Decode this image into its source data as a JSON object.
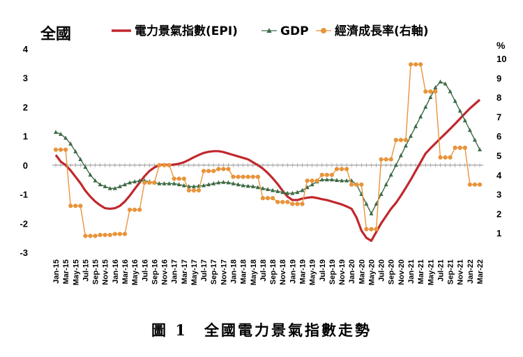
{
  "chart_data": {
    "type": "line",
    "title": "全國",
    "caption": "圖 1　全國電力景氣指數走勢",
    "right_unit": "%",
    "x": [
      "Jan-15",
      "Feb-15",
      "Mar-15",
      "Apr-15",
      "May-15",
      "Jun-15",
      "Jul-15",
      "Aug-15",
      "Sep-15",
      "Oct-15",
      "Nov-15",
      "Dec-15",
      "Jan-16",
      "Feb-16",
      "Mar-16",
      "Apr-16",
      "May-16",
      "Jun-16",
      "Jul-16",
      "Aug-16",
      "Sep-16",
      "Oct-16",
      "Nov-16",
      "Dec-16",
      "Jan-17",
      "Feb-17",
      "Mar-17",
      "Apr-17",
      "May-17",
      "Jun-17",
      "Jul-17",
      "Aug-17",
      "Sep-17",
      "Oct-17",
      "Nov-17",
      "Dec-17",
      "Jan-18",
      "Feb-18",
      "Mar-18",
      "Apr-18",
      "May-18",
      "Jun-18",
      "Jul-18",
      "Aug-18",
      "Sep-18",
      "Oct-18",
      "Nov-18",
      "Dec-18",
      "Jan-19",
      "Feb-19",
      "Mar-19",
      "Apr-19",
      "May-19",
      "Jun-19",
      "Jul-19",
      "Aug-19",
      "Sep-19",
      "Oct-19",
      "Nov-19",
      "Dec-19",
      "Jan-20",
      "Feb-20",
      "Mar-20",
      "Apr-20",
      "May-20",
      "Jun-20",
      "Jul-20",
      "Aug-20",
      "Sep-20",
      "Oct-20",
      "Nov-20",
      "Dec-20",
      "Jan-21",
      "Feb-21",
      "Mar-21",
      "Apr-21",
      "May-21",
      "Jun-21",
      "Jul-21",
      "Aug-21",
      "Sep-21",
      "Oct-21",
      "Nov-21",
      "Dec-21",
      "Jan-22",
      "Feb-22",
      "Mar-22"
    ],
    "x_tick_labels": [
      "Jan-15",
      "Mar-15",
      "May-15",
      "Jul-15",
      "Sep-15",
      "Nov-15",
      "Jan-16",
      "Mar-16",
      "May-16",
      "Jul-16",
      "Sep-16",
      "Nov-16",
      "Jan-17",
      "Mar-17",
      "May-17",
      "Jul-17",
      "Sep-17",
      "Nov-17",
      "Jan-18",
      "Mar-18",
      "May-18",
      "Jul-18",
      "Sep-18",
      "Nov-18",
      "Jan-19",
      "Mar-19",
      "May-19",
      "Jul-19",
      "Sep-19",
      "Nov-19",
      "Jan-20",
      "Mar-20",
      "May-20",
      "Jul-20",
      "Sep-20",
      "Nov-20",
      "Jan-21",
      "Mar-21",
      "May-21",
      "Jul-21",
      "Sep-21",
      "Nov-21",
      "Jan-22",
      "Mar-22"
    ],
    "y_left": {
      "range": [
        -3,
        4
      ],
      "ticks": [
        4,
        3,
        2,
        1,
        0,
        -1,
        -2,
        -3
      ]
    },
    "y_right": {
      "range": [
        0,
        10
      ],
      "ticks": [
        10,
        9,
        8,
        7,
        6,
        5,
        4,
        3,
        2,
        1
      ]
    },
    "grid": false,
    "legend_position": "top",
    "series": [
      {
        "name": "電力景氣指數(EPI)",
        "axis": "left",
        "color": "#C0282D",
        "marker": "none",
        "values": [
          0.35,
          0.12,
          0.0,
          -0.18,
          -0.4,
          -0.62,
          -0.88,
          -1.08,
          -1.25,
          -1.38,
          -1.48,
          -1.5,
          -1.48,
          -1.4,
          -1.25,
          -1.05,
          -0.82,
          -0.6,
          -0.38,
          -0.2,
          -0.08,
          0.0,
          0.02,
          0.0,
          0.02,
          0.05,
          0.1,
          0.18,
          0.27,
          0.35,
          0.42,
          0.46,
          0.48,
          0.48,
          0.45,
          0.4,
          0.35,
          0.3,
          0.25,
          0.2,
          0.1,
          0.0,
          -0.12,
          -0.27,
          -0.45,
          -0.65,
          -0.88,
          -1.08,
          -1.2,
          -1.2,
          -1.15,
          -1.12,
          -1.1,
          -1.13,
          -1.17,
          -1.2,
          -1.25,
          -1.3,
          -1.35,
          -1.42,
          -1.5,
          -1.8,
          -2.25,
          -2.5,
          -2.6,
          -2.3,
          -2.0,
          -1.75,
          -1.5,
          -1.3,
          -1.05,
          -0.78,
          -0.5,
          -0.2,
          0.1,
          0.4,
          0.58,
          0.75,
          0.92,
          1.08,
          1.25,
          1.42,
          1.6,
          1.78,
          1.95,
          2.1,
          2.25
        ]
      },
      {
        "name": "GDP",
        "axis": "right",
        "color": "#3E6B45",
        "marker": "triangle",
        "values": [
          6.2,
          6.1,
          5.9,
          5.6,
          5.2,
          4.8,
          4.4,
          4.0,
          3.7,
          3.5,
          3.4,
          3.3,
          3.3,
          3.4,
          3.5,
          3.6,
          3.65,
          3.7,
          3.7,
          3.65,
          3.6,
          3.55,
          3.55,
          3.55,
          3.55,
          3.5,
          3.45,
          3.4,
          3.4,
          3.42,
          3.45,
          3.5,
          3.55,
          3.6,
          3.62,
          3.6,
          3.55,
          3.5,
          3.45,
          3.42,
          3.4,
          3.35,
          3.3,
          3.25,
          3.2,
          3.15,
          3.1,
          3.05,
          3.05,
          3.1,
          3.2,
          3.35,
          3.5,
          3.65,
          3.75,
          3.75,
          3.75,
          3.72,
          3.7,
          3.7,
          3.7,
          3.5,
          3.0,
          2.5,
          2.0,
          2.5,
          3.0,
          3.5,
          4.0,
          4.5,
          5.0,
          5.5,
          6.0,
          6.5,
          7.0,
          7.5,
          8.0,
          8.5,
          8.8,
          8.7,
          8.3,
          7.8,
          7.3,
          6.8,
          6.3,
          5.8,
          5.3
        ]
      },
      {
        "name": "經濟成長率(右軸)",
        "axis": "right",
        "color": "#E8943A",
        "marker": "circle",
        "values": [
          5.3,
          5.3,
          5.3,
          2.4,
          2.4,
          2.4,
          0.85,
          0.85,
          0.85,
          0.9,
          0.9,
          0.9,
          0.95,
          0.95,
          0.95,
          2.2,
          2.2,
          2.2,
          3.6,
          3.6,
          3.6,
          4.5,
          4.5,
          4.5,
          3.8,
          3.8,
          3.8,
          3.2,
          3.2,
          3.2,
          4.2,
          4.2,
          4.2,
          4.3,
          4.3,
          4.3,
          3.9,
          3.9,
          3.9,
          3.9,
          3.9,
          3.9,
          2.8,
          2.8,
          2.8,
          2.6,
          2.6,
          2.6,
          2.5,
          2.5,
          2.5,
          3.7,
          3.7,
          3.7,
          4.0,
          4.0,
          4.0,
          4.3,
          4.3,
          4.3,
          3.5,
          3.5,
          3.5,
          1.2,
          1.2,
          1.2,
          4.8,
          4.8,
          4.8,
          5.8,
          5.8,
          5.8,
          9.7,
          9.7,
          9.7,
          8.3,
          8.3,
          8.3,
          4.9,
          4.9,
          4.9,
          5.4,
          5.4,
          5.4,
          3.5,
          3.5,
          3.5
        ]
      }
    ]
  }
}
